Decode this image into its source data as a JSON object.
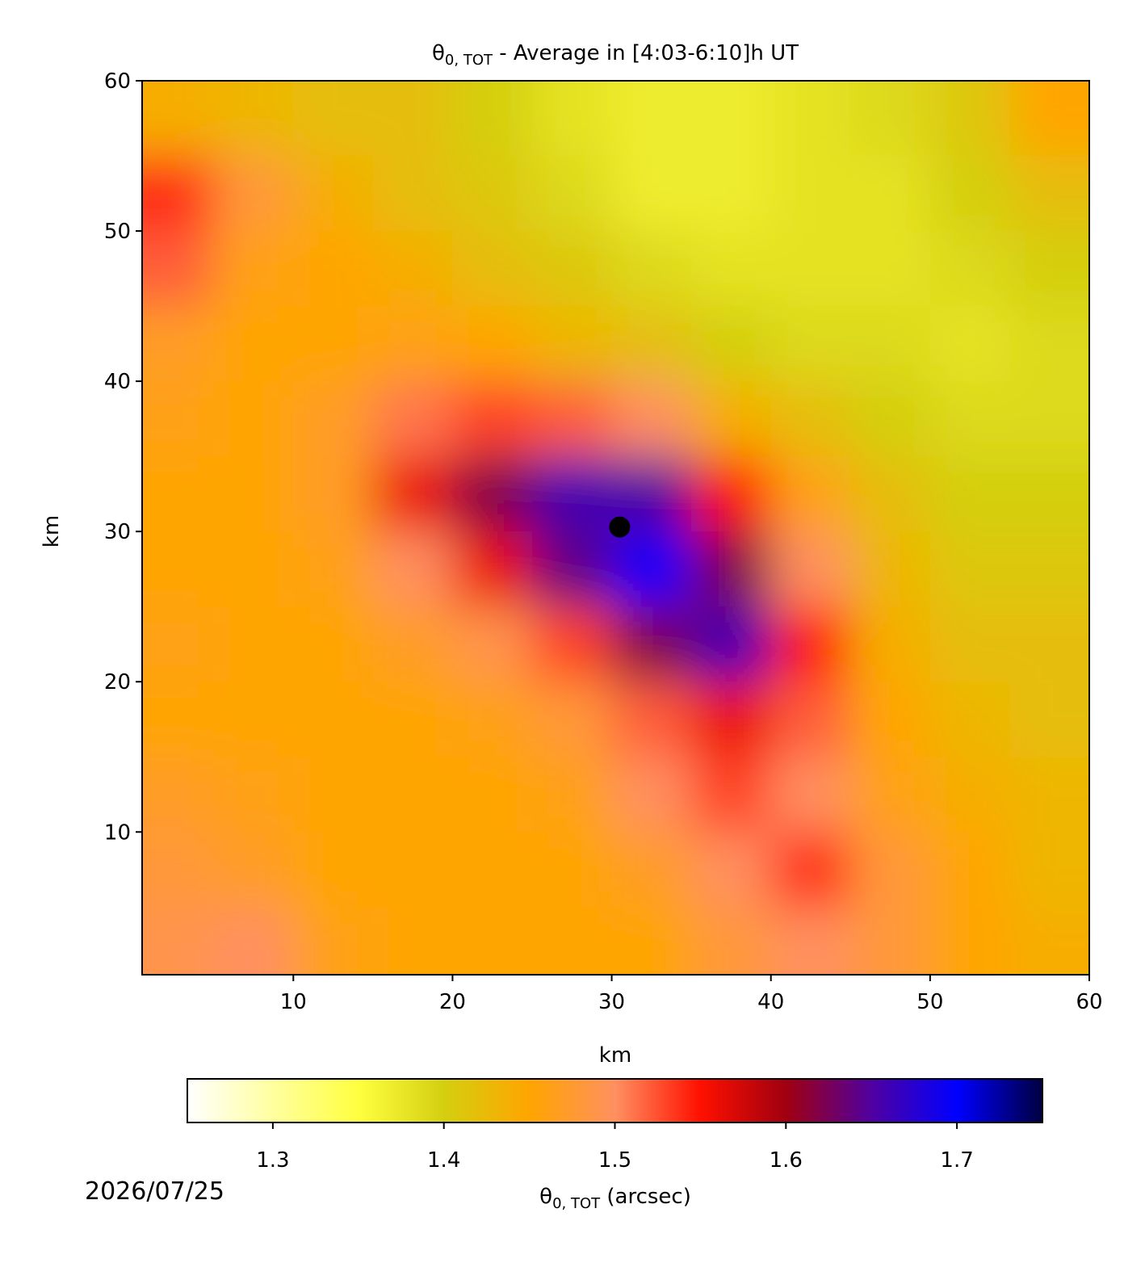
{
  "chart_data": {
    "type": "heatmap",
    "title_symbol": "θ",
    "title_subscript": "0, TOT",
    "title_rest": " - Average in [4:03-6:10]h UT",
    "xlabel": "km",
    "ylabel": "km",
    "xlim": [
      0.5,
      60
    ],
    "ylim": [
      0.5,
      60
    ],
    "xticks": [
      10,
      20,
      30,
      40,
      50,
      60
    ],
    "yticks": [
      10,
      20,
      30,
      40,
      50,
      60
    ],
    "x": [
      2.5,
      7.5,
      12.5,
      17.5,
      22.5,
      27.5,
      32.5,
      37.5,
      42.5,
      47.5,
      52.5,
      57.5
    ],
    "y": [
      57.5,
      52.5,
      47.5,
      42.5,
      37.5,
      32.5,
      27.5,
      22.5,
      17.5,
      12.5,
      7.5,
      2.5
    ],
    "z": [
      [
        1.44,
        1.43,
        1.42,
        1.42,
        1.4,
        1.38,
        1.37,
        1.37,
        1.38,
        1.39,
        1.41,
        1.45
      ],
      [
        1.54,
        1.48,
        1.44,
        1.42,
        1.41,
        1.39,
        1.37,
        1.37,
        1.38,
        1.38,
        1.4,
        1.42
      ],
      [
        1.52,
        1.46,
        1.45,
        1.44,
        1.42,
        1.41,
        1.39,
        1.38,
        1.38,
        1.38,
        1.39,
        1.4
      ],
      [
        1.47,
        1.45,
        1.45,
        1.46,
        1.45,
        1.43,
        1.42,
        1.4,
        1.39,
        1.39,
        1.38,
        1.39
      ],
      [
        1.46,
        1.45,
        1.47,
        1.51,
        1.53,
        1.52,
        1.5,
        1.44,
        1.42,
        1.4,
        1.39,
        1.39
      ],
      [
        1.45,
        1.45,
        1.47,
        1.56,
        1.62,
        1.66,
        1.65,
        1.55,
        1.46,
        1.42,
        1.4,
        1.4
      ],
      [
        1.45,
        1.45,
        1.46,
        1.5,
        1.56,
        1.64,
        1.7,
        1.62,
        1.5,
        1.43,
        1.41,
        1.41
      ],
      [
        1.46,
        1.45,
        1.45,
        1.47,
        1.49,
        1.53,
        1.62,
        1.66,
        1.55,
        1.44,
        1.42,
        1.42
      ],
      [
        1.45,
        1.45,
        1.45,
        1.45,
        1.46,
        1.48,
        1.52,
        1.56,
        1.52,
        1.45,
        1.43,
        1.42
      ],
      [
        1.47,
        1.46,
        1.45,
        1.45,
        1.45,
        1.46,
        1.5,
        1.53,
        1.5,
        1.46,
        1.44,
        1.43
      ],
      [
        1.48,
        1.47,
        1.45,
        1.45,
        1.45,
        1.45,
        1.47,
        1.5,
        1.54,
        1.48,
        1.45,
        1.43
      ],
      [
        1.49,
        1.5,
        1.46,
        1.45,
        1.45,
        1.45,
        1.45,
        1.48,
        1.5,
        1.48,
        1.45,
        1.44
      ]
    ],
    "marker": {
      "x": 30.5,
      "y": 30.3,
      "color": "#000000"
    },
    "colorbar": {
      "label_symbol": "θ",
      "label_subscript": "0, TOT",
      "label_rest": " (arcsec)",
      "clim": [
        1.25,
        1.75
      ],
      "ticks": [
        1.3,
        1.4,
        1.5,
        1.6,
        1.7
      ],
      "colormap": [
        "#ffffff",
        "#ffffa0",
        "#ffff40",
        "#d4cf10",
        "#ffa500",
        "#ff9060",
        "#ff1000",
        "#a00010",
        "#5000a0",
        "#0000ff",
        "#000040"
      ]
    },
    "date": "2026/07/25"
  }
}
